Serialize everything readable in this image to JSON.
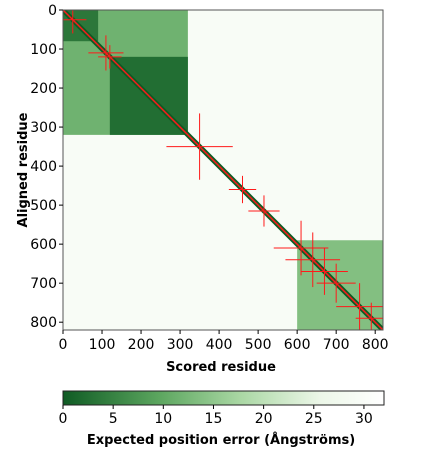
{
  "chart_data": {
    "type": "heatmap",
    "title": "",
    "xlabel": "Scored residue",
    "ylabel": "Aligned residue",
    "xlim": [
      0,
      820
    ],
    "ylim": [
      0,
      820
    ],
    "x_ticks": [
      "0",
      "100",
      "200",
      "300",
      "400",
      "500",
      "600",
      "700",
      "800"
    ],
    "y_ticks": [
      "0",
      "100",
      "200",
      "300",
      "400",
      "500",
      "600",
      "700",
      "800"
    ],
    "colorbar": {
      "label": "Expected position error (Ångströms)",
      "min": 0,
      "max": 32,
      "ticks": [
        "0",
        "5",
        "10",
        "15",
        "20",
        "25",
        "30"
      ],
      "colors": [
        "#0f5b24",
        "#5ca65f",
        "#a9d7a3",
        "#ecf7e8",
        "#ffffff"
      ]
    },
    "low_error_blocks": [
      {
        "x": [
          0,
          320
        ],
        "y": [
          0,
          320
        ],
        "value": 10
      },
      {
        "x": [
          120,
          320
        ],
        "y": [
          120,
          320
        ],
        "value": 2
      },
      {
        "x": [
          0,
          90
        ],
        "y": [
          0,
          80
        ],
        "value": 3
      },
      {
        "x": [
          600,
          820
        ],
        "y": [
          590,
          820
        ],
        "value": 12
      }
    ],
    "diagonal_value": 0,
    "background_value": 29,
    "domain_markers": [
      {
        "center": 25,
        "half_span": 35
      },
      {
        "center": 110,
        "half_span": 45
      },
      {
        "center": 120,
        "half_span": 30
      },
      {
        "center": 350,
        "half_span": 85
      },
      {
        "center": 460,
        "half_span": 35
      },
      {
        "center": 515,
        "half_span": 40
      },
      {
        "center": 610,
        "half_span": 70
      },
      {
        "center": 640,
        "half_span": 70
      },
      {
        "center": 670,
        "half_span": 60
      },
      {
        "center": 700,
        "half_span": 50
      },
      {
        "center": 760,
        "half_span": 60
      },
      {
        "center": 790,
        "half_span": 40
      }
    ],
    "marker_color": "#ff1a1a"
  }
}
